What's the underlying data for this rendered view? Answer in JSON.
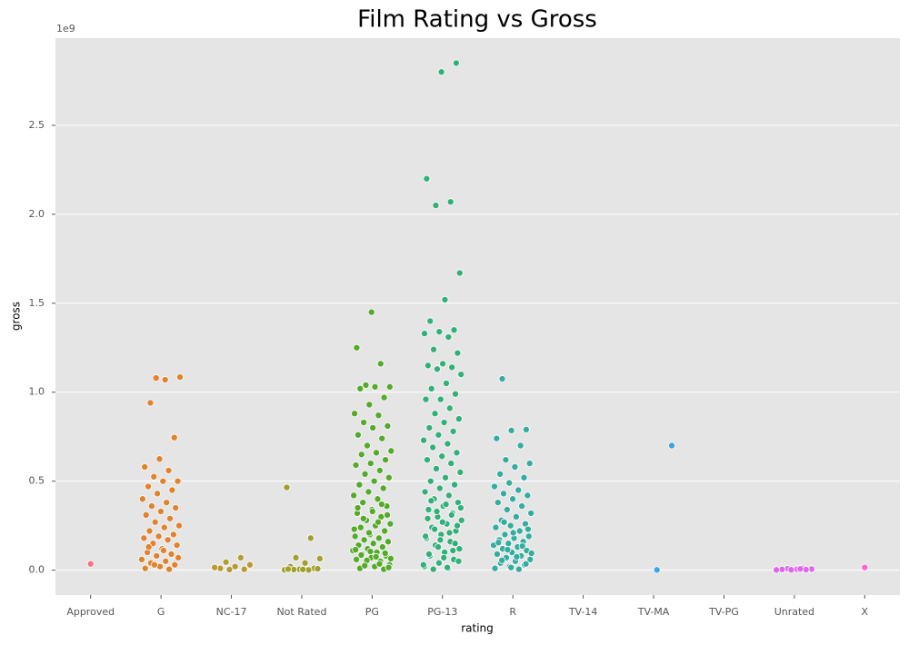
{
  "chart_data": {
    "type": "strip",
    "title": "Film Rating vs Gross",
    "xlabel": "rating",
    "ylabel": "gross",
    "y_offset_label": "1e9",
    "categories": [
      "Approved",
      "G",
      "NC-17",
      "Not Rated",
      "PG",
      "PG-13",
      "R",
      "TV-14",
      "TV-MA",
      "TV-PG",
      "Unrated",
      "X"
    ],
    "colors": [
      "#f77189",
      "#e1822d",
      "#b59b31",
      "#a0a030",
      "#55aa2a",
      "#33b07a",
      "#35aca0",
      "#37abb5",
      "#3aa4e6",
      "#a48cf4",
      "#d969e8",
      "#f564d4"
    ],
    "values": [
      [
        0.035
      ],
      [
        1.08,
        1.085,
        1.07,
        0.94,
        0.745,
        0.625,
        0.58,
        0.56,
        0.525,
        0.5,
        0.5,
        0.47,
        0.45,
        0.43,
        0.4,
        0.38,
        0.36,
        0.35,
        0.33,
        0.31,
        0.29,
        0.27,
        0.25,
        0.24,
        0.22,
        0.2,
        0.19,
        0.18,
        0.17,
        0.15,
        0.14,
        0.12,
        0.1,
        0.09,
        0.08,
        0.06,
        0.05,
        0.04,
        0.03,
        0.02,
        0.01,
        0.005,
        0.03,
        0.07,
        0.11,
        0.13
      ],
      [
        0.07,
        0.045,
        0.03,
        0.02,
        0.01,
        0.005,
        0.003,
        0.015
      ],
      [
        0.465,
        0.18,
        0.07,
        0.065,
        0.04,
        0.02,
        0.01,
        0.005,
        0.002,
        0.001,
        0.003,
        0.008,
        0.004,
        0.006
      ],
      [
        1.45,
        1.25,
        1.16,
        1.04,
        1.03,
        1.03,
        1.02,
        0.97,
        0.93,
        0.88,
        0.87,
        0.83,
        0.81,
        0.8,
        0.76,
        0.74,
        0.7,
        0.67,
        0.66,
        0.65,
        0.62,
        0.6,
        0.59,
        0.56,
        0.54,
        0.52,
        0.5,
        0.48,
        0.46,
        0.44,
        0.42,
        0.4,
        0.38,
        0.36,
        0.34,
        0.32,
        0.3,
        0.28,
        0.26,
        0.25,
        0.24,
        0.22,
        0.2,
        0.19,
        0.18,
        0.17,
        0.16,
        0.15,
        0.14,
        0.13,
        0.12,
        0.11,
        0.1,
        0.09,
        0.08,
        0.07,
        0.06,
        0.05,
        0.04,
        0.03,
        0.02,
        0.01,
        0.005,
        0.21,
        0.23,
        0.27,
        0.29,
        0.31,
        0.33,
        0.35,
        0.37,
        0.055,
        0.065,
        0.075,
        0.085,
        0.095,
        0.105,
        0.115,
        0.035,
        0.025,
        0.015
      ],
      [
        2.85,
        2.8,
        2.2,
        2.07,
        2.05,
        1.67,
        1.52,
        1.4,
        1.35,
        1.34,
        1.33,
        1.31,
        1.24,
        1.22,
        1.16,
        1.15,
        1.14,
        1.13,
        1.1,
        1.05,
        1.02,
        0.99,
        0.96,
        0.96,
        0.91,
        0.88,
        0.85,
        0.83,
        0.8,
        0.78,
        0.76,
        0.73,
        0.71,
        0.69,
        0.66,
        0.64,
        0.62,
        0.6,
        0.57,
        0.55,
        0.52,
        0.5,
        0.48,
        0.46,
        0.44,
        0.42,
        0.4,
        0.38,
        0.36,
        0.34,
        0.32,
        0.3,
        0.28,
        0.26,
        0.24,
        0.22,
        0.2,
        0.18,
        0.16,
        0.14,
        0.12,
        0.1,
        0.08,
        0.06,
        0.04,
        0.02,
        0.01,
        0.005,
        0.25,
        0.27,
        0.29,
        0.31,
        0.33,
        0.35,
        0.37,
        0.39,
        0.15,
        0.17,
        0.19,
        0.21,
        0.23,
        0.05,
        0.07,
        0.09,
        0.11,
        0.13,
        0.03,
        0.015
      ],
      [
        1.075,
        0.79,
        0.785,
        0.74,
        0.7,
        0.62,
        0.6,
        0.58,
        0.54,
        0.52,
        0.49,
        0.47,
        0.45,
        0.43,
        0.42,
        0.4,
        0.38,
        0.36,
        0.34,
        0.32,
        0.3,
        0.28,
        0.26,
        0.25,
        0.24,
        0.22,
        0.2,
        0.19,
        0.18,
        0.17,
        0.16,
        0.15,
        0.14,
        0.13,
        0.12,
        0.11,
        0.1,
        0.09,
        0.08,
        0.07,
        0.06,
        0.05,
        0.04,
        0.03,
        0.02,
        0.01,
        0.005,
        0.27,
        0.23,
        0.21,
        0.155,
        0.135,
        0.115,
        0.095,
        0.075,
        0.055,
        0.035,
        0.015
      ],
      [],
      [
        0.7,
        0.001
      ],
      [],
      [
        0.01,
        0.008,
        0.006,
        0.005,
        0.004,
        0.003,
        0.002,
        0.001,
        0.007
      ],
      [
        0.015
      ]
    ],
    "ylim": [
      -0.14,
      2.99
    ],
    "yticks": [
      {
        "value": 0,
        "label": "0.0"
      },
      0.5,
      {
        "value": 1,
        "label": "1.0"
      },
      1.5,
      {
        "value": 2,
        "label": "2.0"
      },
      2.5
    ],
    "grid": true,
    "background": "#e5e5e5"
  }
}
